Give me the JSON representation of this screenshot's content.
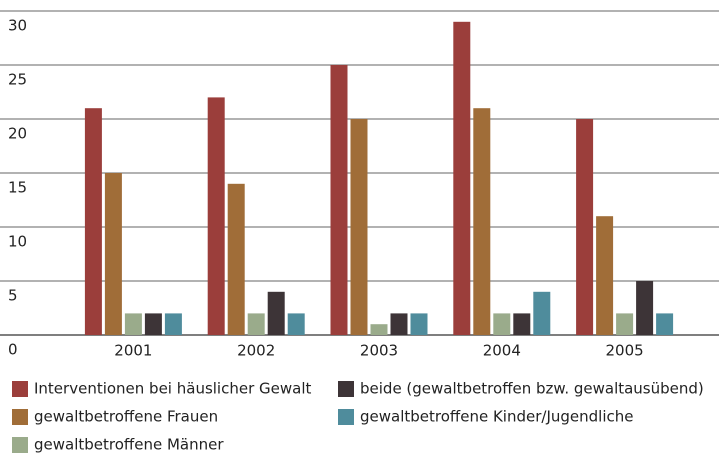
{
  "chart_data": {
    "type": "bar",
    "categories": [
      "2001",
      "2002",
      "2003",
      "2004",
      "2005"
    ],
    "series": [
      {
        "name": "Interventionen bei häuslicher Gewalt",
        "color": "#9b3e3b",
        "values": [
          21,
          22,
          25,
          29,
          20
        ]
      },
      {
        "name": "gewaltbetroffene Frauen",
        "color": "#a06d38",
        "values": [
          15,
          14,
          20,
          21,
          11
        ]
      },
      {
        "name": "gewaltbetroffene Männer",
        "color": "#9aab8b",
        "values": [
          2,
          2,
          1,
          2,
          2
        ]
      },
      {
        "name": "beide (gewaltbetroffen bzw. gewaltausübend)",
        "color": "#3d3437",
        "values": [
          2,
          4,
          2,
          2,
          5
        ]
      },
      {
        "name": "gewaltbetroffene Kinder/Jugendliche",
        "color": "#4f8c9c",
        "values": [
          2,
          2,
          2,
          4,
          2
        ]
      }
    ],
    "ylim": [
      0,
      30
    ],
    "yticks": [
      0,
      5,
      10,
      15,
      20,
      25,
      30
    ],
    "grid": true
  }
}
